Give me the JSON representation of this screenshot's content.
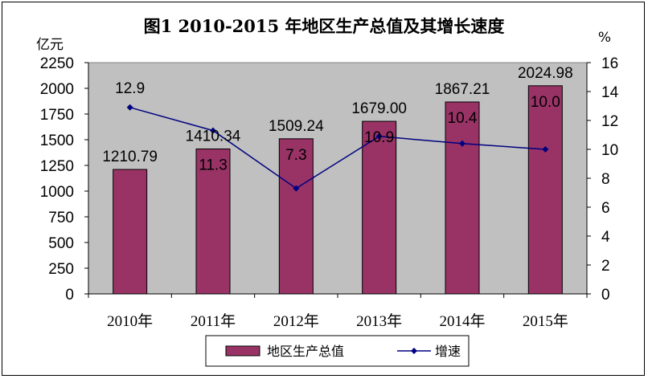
{
  "chart_data": {
    "type": "bar",
    "title": "图1   2010-2015      年地区生产总值及其增长速度",
    "categories": [
      "2010年",
      "2011年",
      "2012年",
      "2013年",
      "2014年",
      "2015年"
    ],
    "series": [
      {
        "name": "地区生产总值",
        "type": "bar",
        "axis": "left",
        "values": [
          1210.79,
          1410.34,
          1509.24,
          1679.0,
          1867.21,
          2024.98
        ],
        "labels": [
          "1210.79",
          "1410.34",
          "1509.24",
          "1679.00",
          "1867.21",
          "2024.98"
        ],
        "color": "#993366"
      },
      {
        "name": "增速",
        "type": "line",
        "axis": "right",
        "values": [
          12.9,
          11.3,
          7.3,
          10.9,
          10.4,
          10.0
        ],
        "labels": [
          "12.9",
          "11.3",
          "7.3",
          "10.9",
          "10.4",
          "10.0"
        ],
        "color": "#000080"
      }
    ],
    "y_left": {
      "unit": "亿元",
      "min": 0,
      "max": 2250,
      "step": 250
    },
    "y_right": {
      "unit": "%",
      "min": 0,
      "max": 16,
      "step": 2
    },
    "plot_background": "#c0c0c0",
    "grid": false,
    "legend_position": "bottom"
  }
}
